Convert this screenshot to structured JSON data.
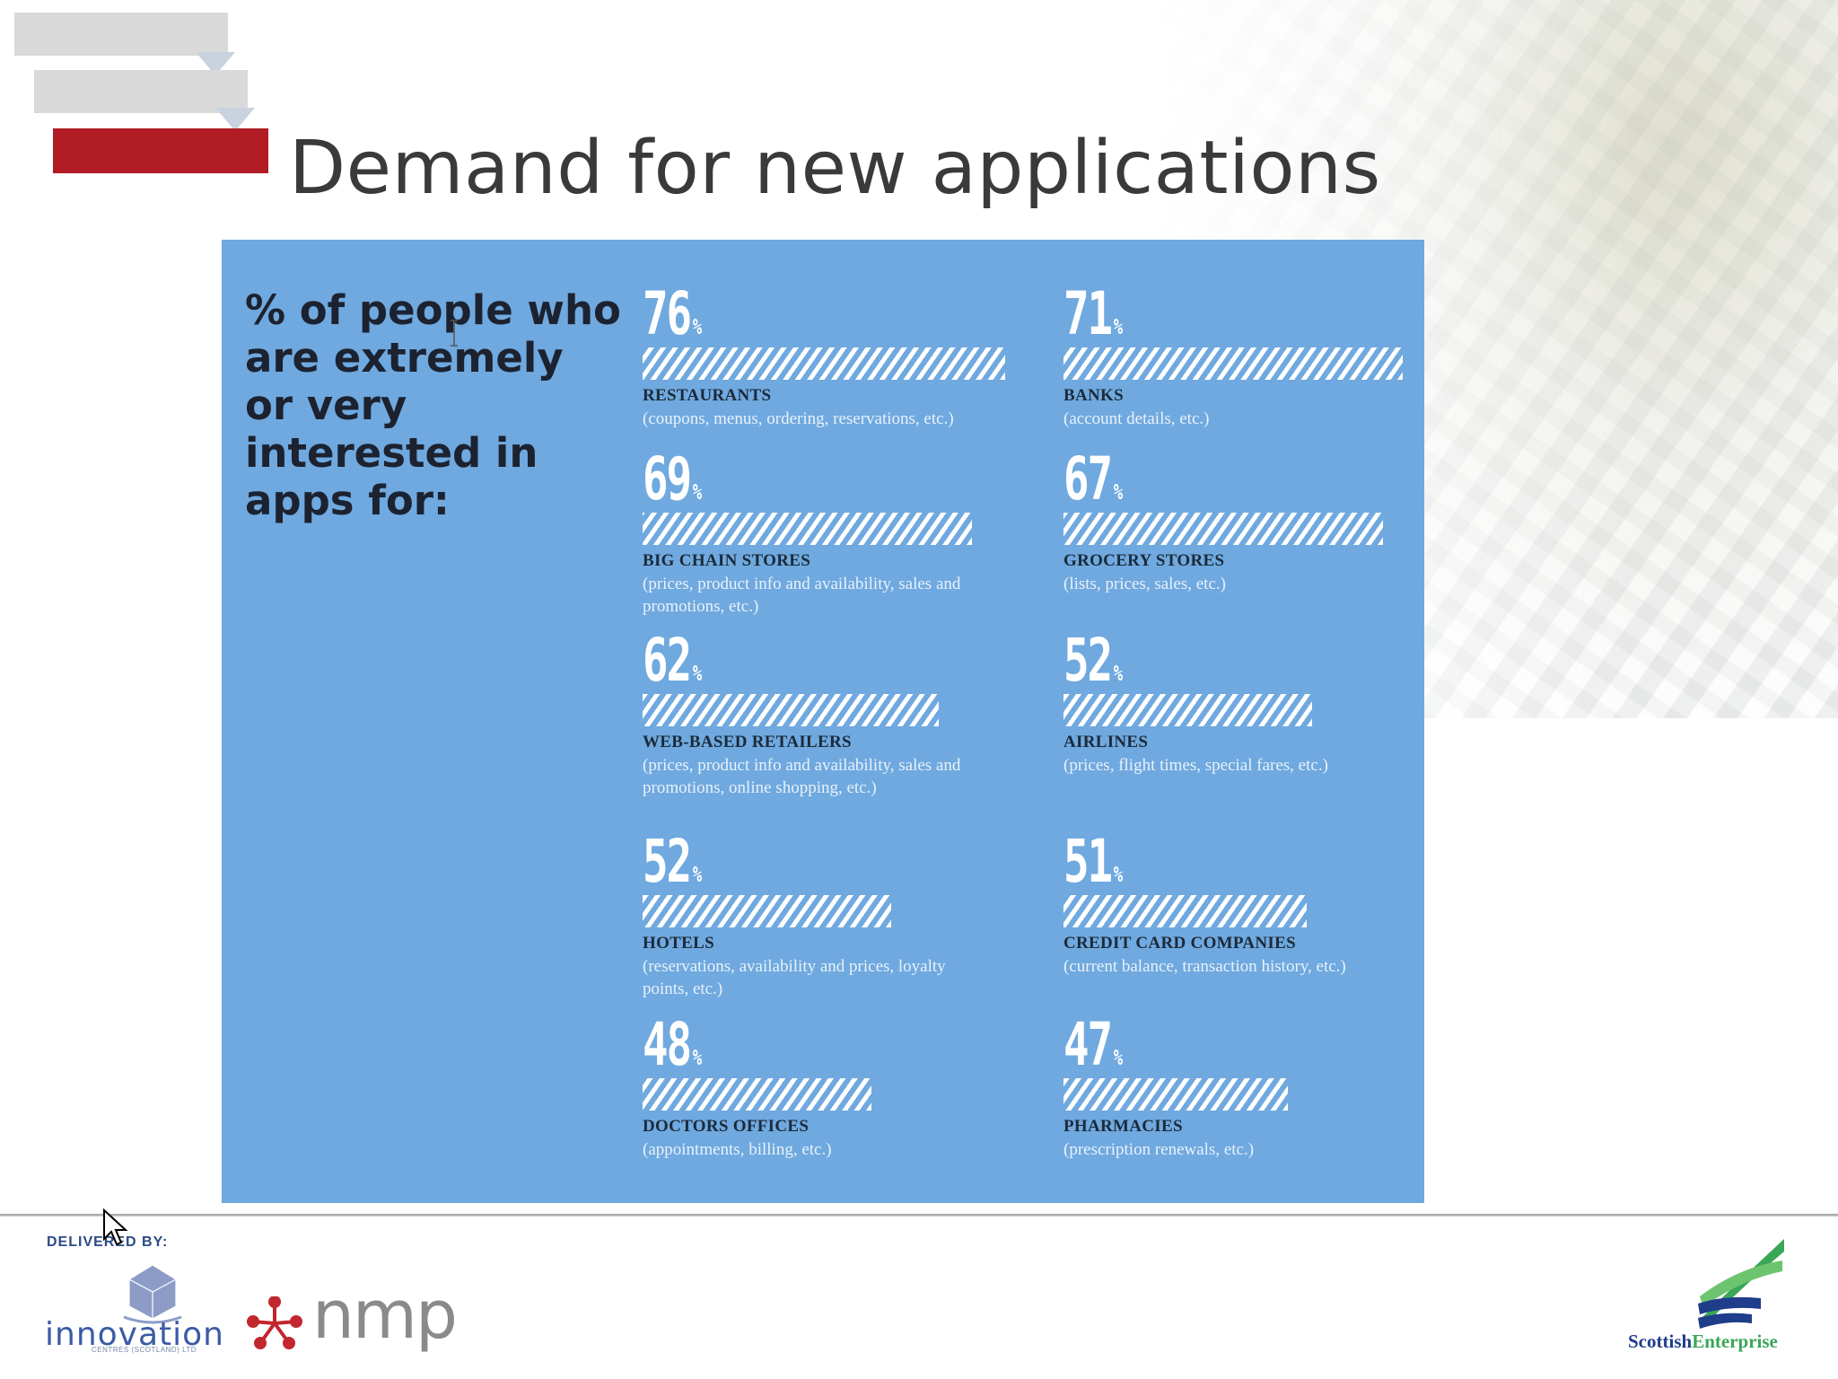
{
  "slide": {
    "title": "Demand for new applications"
  },
  "chart_data": {
    "type": "bar",
    "title": "% of people who are extremely or very interested in apps for:",
    "unit": "%",
    "xlim": [
      0,
      100
    ],
    "bar_color": "#ffffff",
    "background_color": "#6fa9df",
    "items": [
      {
        "category": "RESTAURANTS",
        "description": "(coupons, menus, ordering, reservations, etc.)",
        "value": 76
      },
      {
        "category": "BANKS",
        "description": "(account details, etc.)",
        "value": 71
      },
      {
        "category": "BIG CHAIN STORES",
        "description": "(prices, product info and availability, sales and promotions, etc.)",
        "value": 69
      },
      {
        "category": "GROCERY STORES",
        "description": "(lists, prices, sales, etc.)",
        "value": 67
      },
      {
        "category": "WEB-BASED RETAILERS",
        "description": "(prices, product info and availability, sales and promotions, online shopping, etc.)",
        "value": 62
      },
      {
        "category": "AIRLINES",
        "description": "(prices, flight times, special fares, etc.)",
        "value": 52
      },
      {
        "category": "HOTELS",
        "description": "(reservations, availability and prices, loyalty points, etc.)",
        "value": 52
      },
      {
        "category": "CREDIT CARD COMPANIES",
        "description": "(current balance, transaction history, etc.)",
        "value": 51
      },
      {
        "category": "DOCTORS OFFICES",
        "description": "(appointments, billing, etc.)",
        "value": 48
      },
      {
        "category": "PHARMACIES",
        "description": "(prescription renewals, etc.)",
        "value": 47
      }
    ]
  },
  "footer": {
    "delivered_by": "DELIVERED BY:",
    "logo_innovation": "innovation",
    "logo_innovation_sub": "CENTRES (SCOTLAND) LTD",
    "logo_nmp": "nmp",
    "logo_scottish": "Scottish",
    "logo_enterprise": "Enterprise"
  },
  "colors": {
    "accent_red": "#b11c24",
    "panel_blue": "#6fa9df",
    "heading_dark": "#1c2230"
  }
}
